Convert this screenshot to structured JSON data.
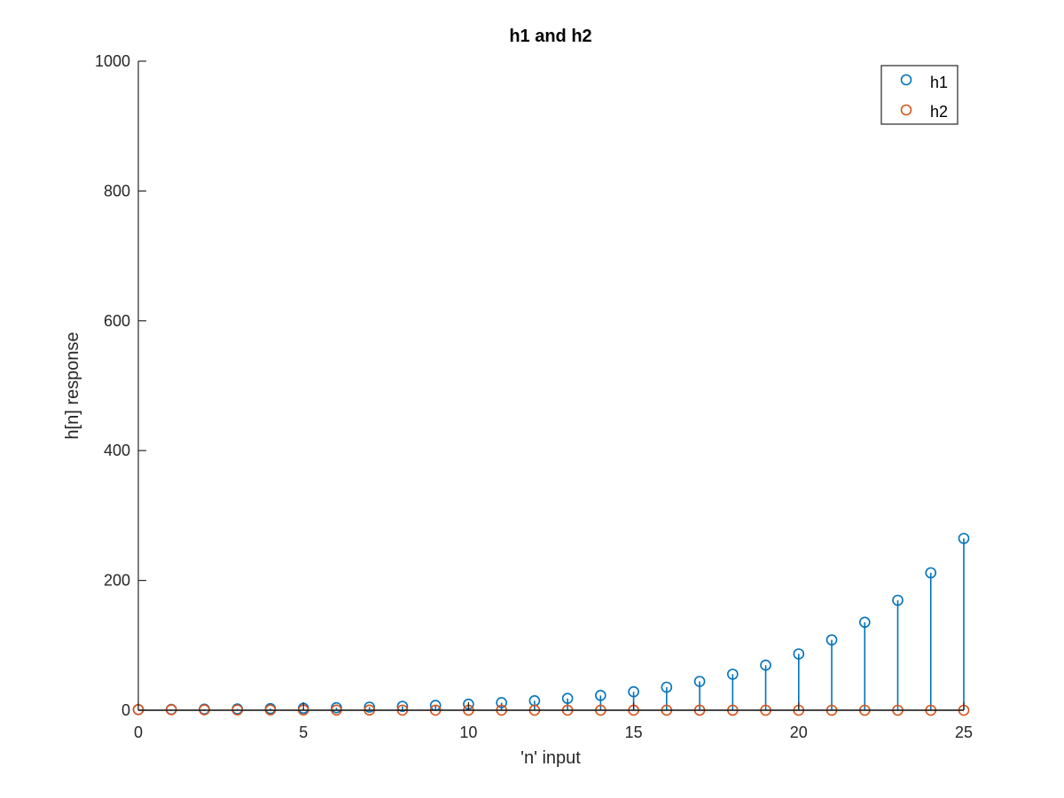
{
  "chart_data": {
    "type": "stem",
    "title": "h1 and h2",
    "xlabel": "'n' input",
    "ylabel": "h[n] response",
    "xlim": [
      0,
      25
    ],
    "ylim": [
      0,
      1000
    ],
    "xticks": [
      0,
      5,
      10,
      15,
      20,
      25
    ],
    "yticks": [
      0,
      200,
      400,
      600,
      800,
      1000
    ],
    "grid": false,
    "legend_position": "top-right",
    "x": [
      0,
      1,
      2,
      3,
      4,
      5,
      6,
      7,
      8,
      9,
      10,
      11,
      12,
      13,
      14,
      15,
      16,
      17,
      18,
      19,
      20,
      21,
      22,
      23,
      24,
      25
    ],
    "series": [
      {
        "name": "h1",
        "color": "#0072BD",
        "marker": "circle",
        "values": [
          1,
          1.25,
          1.56,
          1.95,
          2.44,
          3.05,
          3.81,
          4.77,
          5.96,
          7.45,
          9.31,
          11.64,
          14.55,
          18.19,
          22.74,
          28.42,
          35.53,
          44.41,
          55.51,
          69.39,
          86.74,
          108.42,
          135.53,
          169.41,
          211.76,
          264.7
        ]
      },
      {
        "name": "h2",
        "color": "#D95319",
        "marker": "circle",
        "values": [
          1,
          0.8,
          0.64,
          0.51,
          0.41,
          0.33,
          0.26,
          0.21,
          0.17,
          0.13,
          0.11,
          0.09,
          0.07,
          0.05,
          0.04,
          0.04,
          0.03,
          0.02,
          0.02,
          0.01,
          0.01,
          0.01,
          0.01,
          0.01,
          0,
          0
        ]
      }
    ]
  }
}
